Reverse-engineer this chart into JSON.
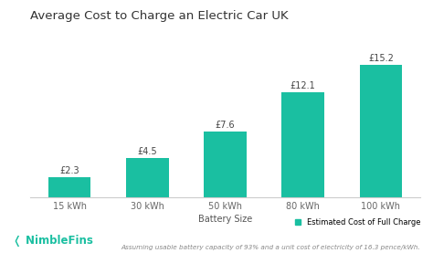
{
  "title": "Average Cost to Charge an Electric Car UK",
  "categories": [
    "15 kWh",
    "30 kWh",
    "50 kWh",
    "80 kWh",
    "100 kWh"
  ],
  "values": [
    2.3,
    4.5,
    7.6,
    12.1,
    15.2
  ],
  "labels": [
    "£2.3",
    "£4.5",
    "£7.6",
    "£12.1",
    "£15.2"
  ],
  "bar_color": "#1ABFA1",
  "xlabel": "Battery Size",
  "ylim": [
    0,
    18
  ],
  "background_color": "#ffffff",
  "title_fontsize": 9.5,
  "label_fontsize": 7,
  "tick_fontsize": 7,
  "legend_label": "Estimated Cost of Full Charge",
  "footnote": "Assuming usable battery capacity of 93% and a unit cost of electricity of 16.3 pence/kWh.",
  "nimblefins_text": "❬ NimbleFins"
}
